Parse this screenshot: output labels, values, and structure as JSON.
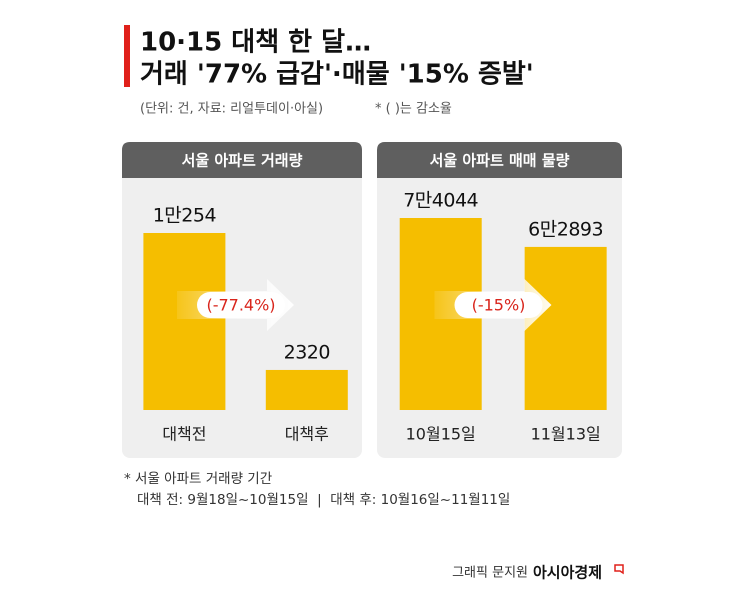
{
  "header": {
    "title_line1": "10·15 대책 한 달…",
    "title_line2": "거래 '77% 급감'·매물 '15% 증발'",
    "note": "(단위: 건, 자료: 리얼투데이·아실)",
    "note2": "* ( )는 감소율"
  },
  "chart_data": [
    {
      "type": "bar",
      "title": "서울 아파트 거래량",
      "categories": [
        "대책전",
        "대책후"
      ],
      "values": [
        10254,
        2320
      ],
      "value_labels": [
        "1만254",
        "2320"
      ],
      "color": "#f5be00",
      "annotation": "(-77.4%)"
    },
    {
      "type": "bar",
      "title": "서울 아파트 매매 물량",
      "categories": [
        "10월15일",
        "11월13일"
      ],
      "values": [
        74044,
        62893
      ],
      "value_labels": [
        "7만4044",
        "6만2893"
      ],
      "color": "#f5be00",
      "annotation": "(-15%)"
    }
  ],
  "footnote": {
    "line1": "* 서울 아파트 거래량 기간",
    "line2": "대책 전: 9월18일~10월15일  |  대책 후: 10월16일~11월11일"
  },
  "credit": {
    "author": "그래픽 문지원",
    "brand": "아시아경제"
  }
}
